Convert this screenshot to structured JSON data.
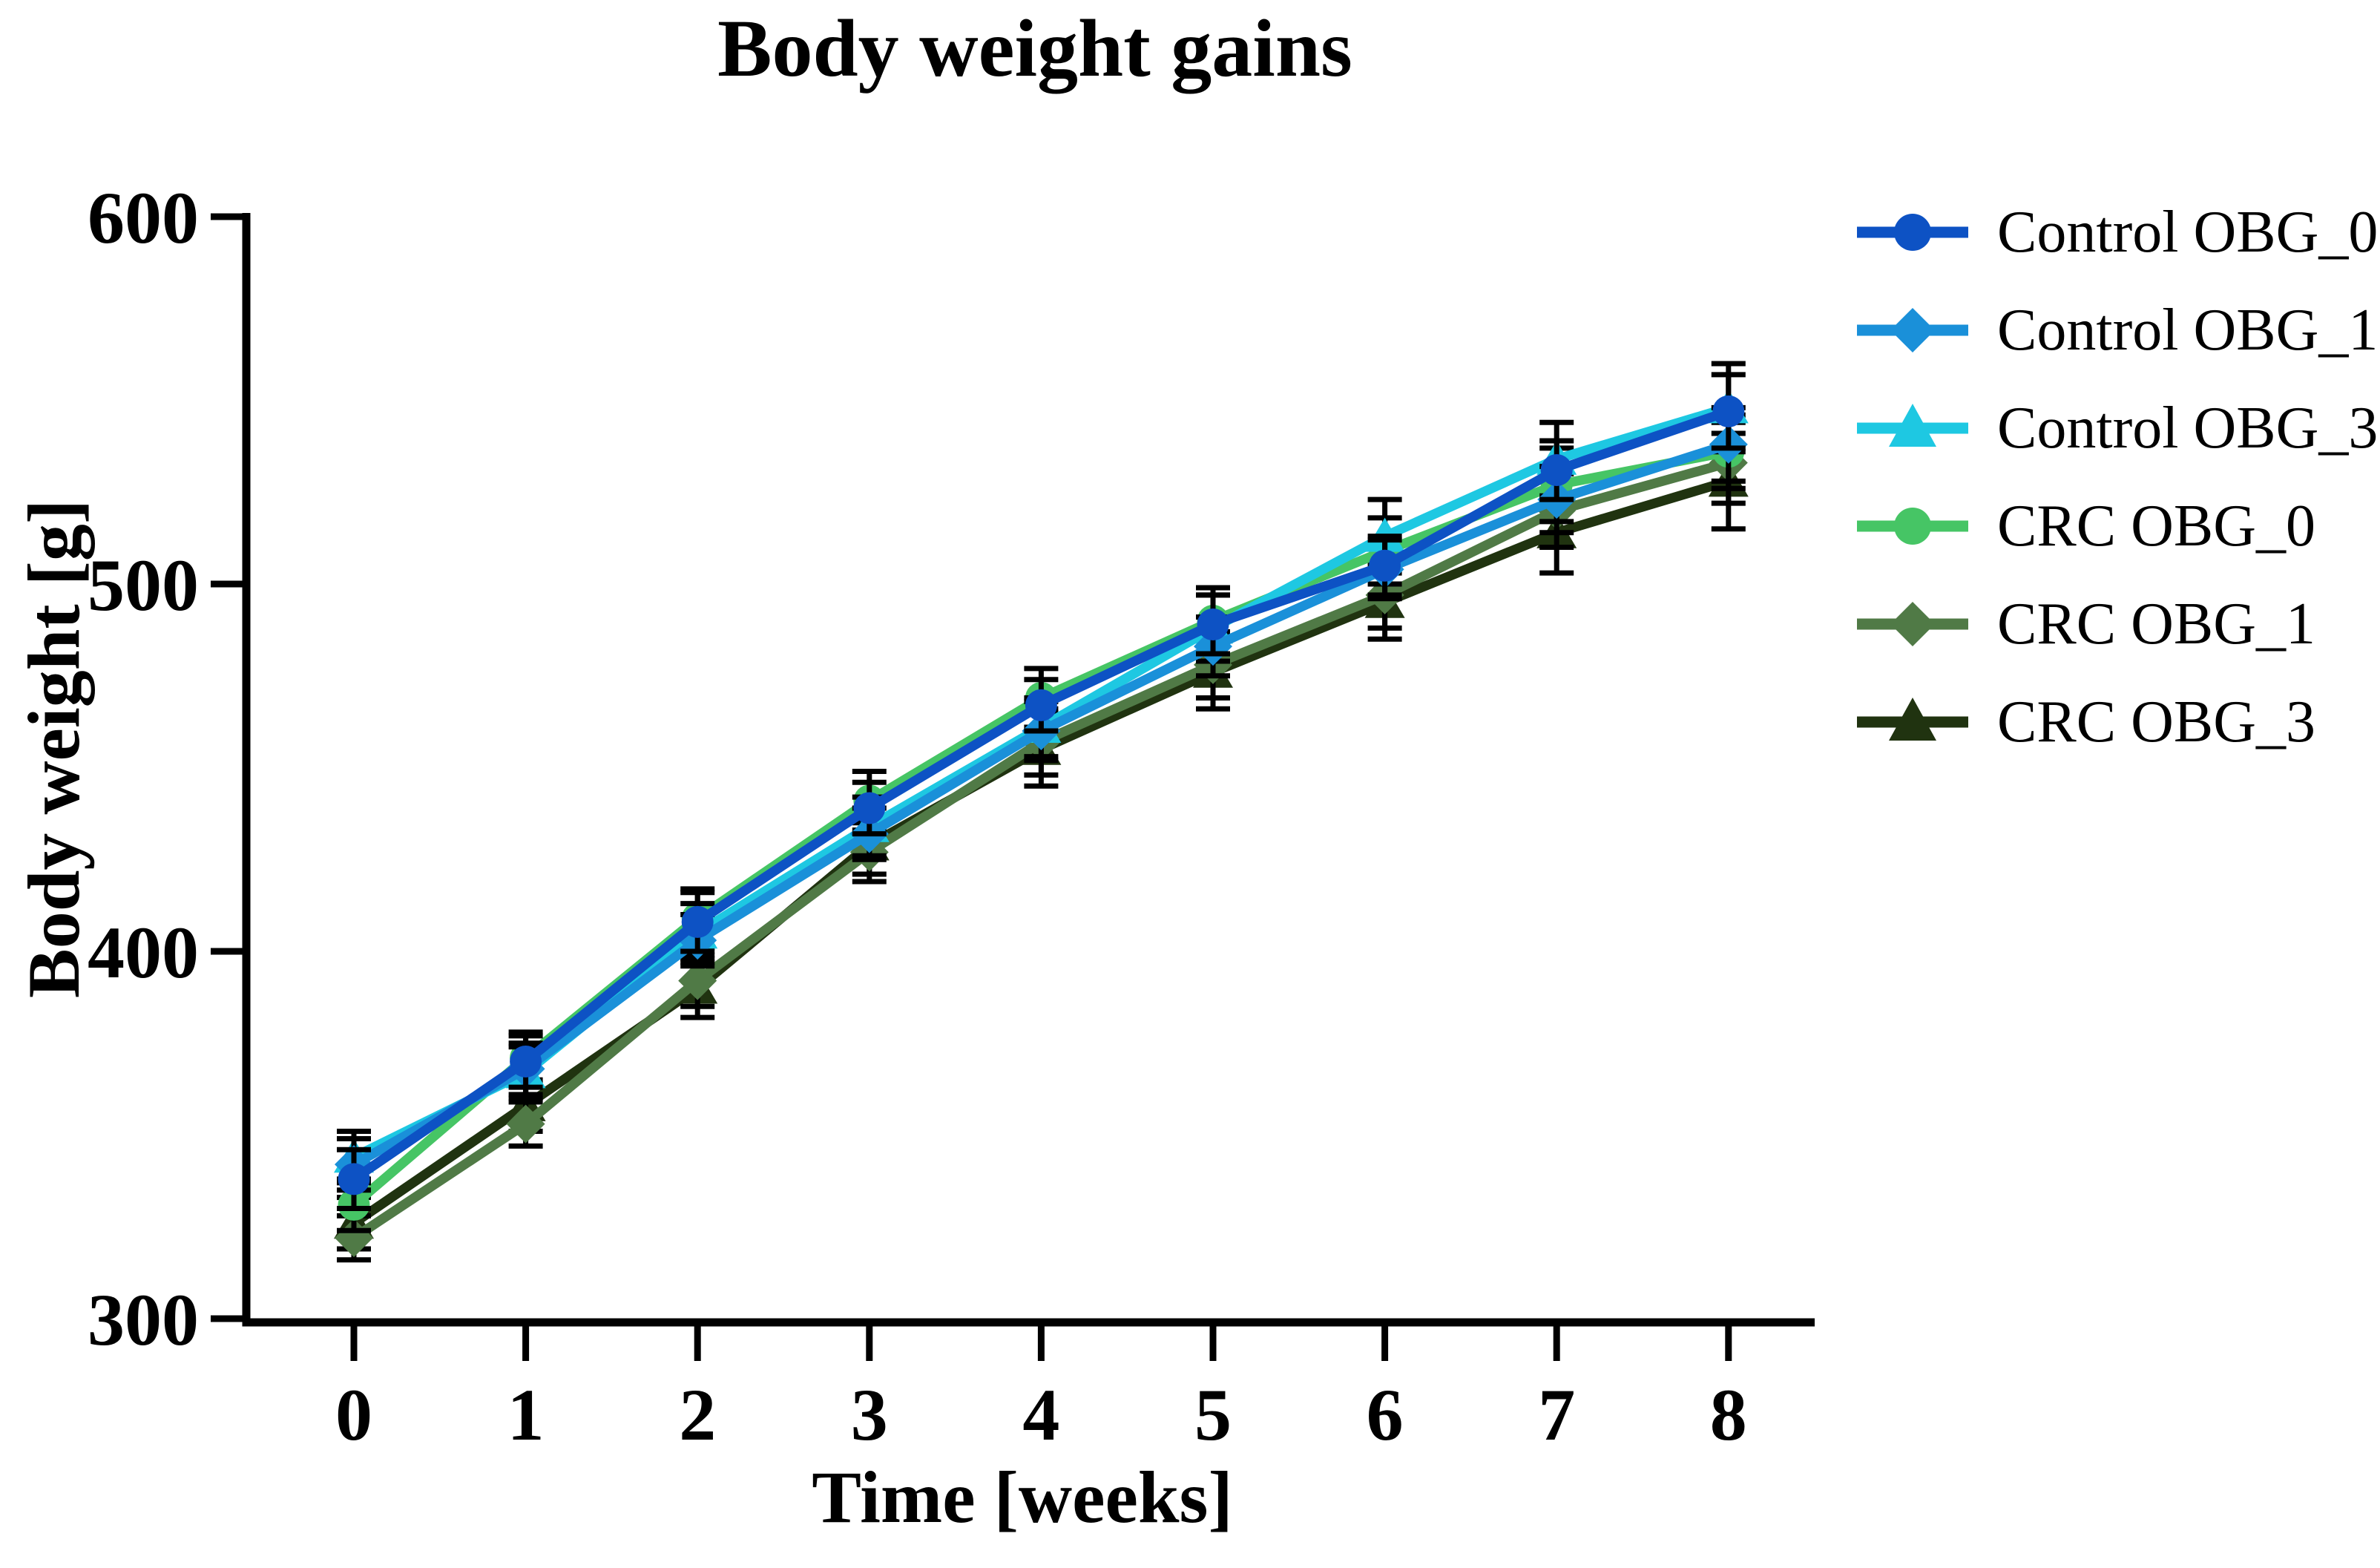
{
  "title": "Body weight gains",
  "axes": {
    "y_label": "Body weight [g]",
    "x_label": "Time [weeks]",
    "y_ticks": [
      300,
      400,
      500,
      600
    ],
    "x_ticks": [
      0,
      1,
      2,
      3,
      4,
      5,
      6,
      7,
      8
    ]
  },
  "chart_data": {
    "type": "line",
    "title": "Body weight gains",
    "xlabel": "Time [weeks]",
    "ylabel": "Body weight [g]",
    "x": [
      0,
      1,
      2,
      3,
      4,
      5,
      6,
      7,
      8
    ],
    "ylim": [
      300,
      600
    ],
    "yticks": [
      300,
      400,
      500,
      600
    ],
    "grid": false,
    "legend_position": "right",
    "error_bar_color": "#000000",
    "axis_color": "#000000",
    "series": [
      {
        "name": "Control OBG_0",
        "marker": "circle",
        "color": "#0d52c4",
        "values": [
          338,
          370,
          408,
          439,
          467,
          489,
          505,
          531,
          547
        ],
        "sem": [
          8,
          7,
          8,
          7,
          7,
          8,
          8,
          8,
          10
        ]
      },
      {
        "name": "Control OBG_1",
        "marker": "diamond",
        "color": "#1a90d9",
        "values": [
          342,
          368,
          403,
          432,
          460,
          483,
          504,
          523,
          538
        ],
        "sem": [
          7,
          7,
          7,
          7,
          8,
          8,
          8,
          9,
          10
        ]
      },
      {
        "name": "Control OBG_3",
        "marker": "triangle",
        "color": "#1ec8e2",
        "values": [
          344,
          367,
          405,
          434,
          461,
          488,
          513,
          534,
          548
        ],
        "sem": [
          7,
          7,
          8,
          8,
          8,
          9,
          10,
          10,
          12
        ]
      },
      {
        "name": "CRC OBG_0",
        "marker": "circle",
        "color": "#46c565",
        "values": [
          331,
          371,
          409,
          441,
          469,
          490,
          509,
          527,
          536
        ],
        "sem": [
          7,
          7,
          8,
          8,
          8,
          9,
          9,
          10,
          10
        ]
      },
      {
        "name": "CRC OBG_1",
        "marker": "diamond",
        "color": "#507a46",
        "values": [
          322,
          353,
          392,
          427,
          457,
          478,
          497,
          520,
          533
        ],
        "sem": [
          6,
          6,
          7,
          8,
          9,
          9,
          9,
          10,
          11
        ]
      },
      {
        "name": "CRC OBG_3",
        "marker": "triangle",
        "color": "#203310",
        "values": [
          326,
          358,
          390,
          429,
          455,
          476,
          495,
          514,
          528
        ],
        "sem": [
          7,
          7,
          8,
          8,
          10,
          10,
          10,
          11,
          13
        ]
      }
    ]
  }
}
